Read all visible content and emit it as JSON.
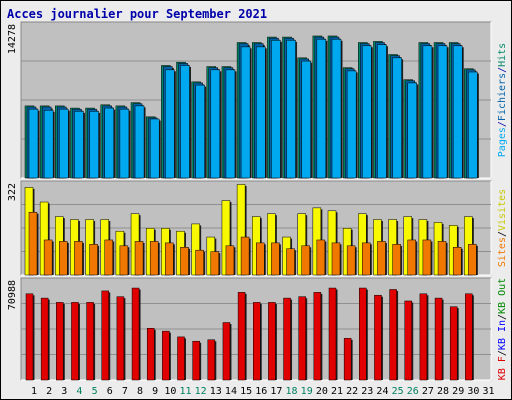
{
  "title": "Acces journalier pour September 2021",
  "colors": {
    "panel_bg": "#c0c0c0",
    "pages": "#00a8f0",
    "fichiers": "#0060a8",
    "hits": "#008868",
    "visites": "#f8f800",
    "sites": "#f07800",
    "kb_in": "#0000ff",
    "kb_out": "#008800",
    "kb_f": "#e00000",
    "weekend_label": "#008060"
  },
  "chart_data": [
    {
      "type": "bar",
      "name": "hits-fichiers-pages",
      "ymax_label": "14278",
      "ylim": [
        0,
        14278
      ],
      "side_labels": [
        "Pages",
        "/",
        "Fichiers",
        "/",
        "Hits"
      ],
      "categories": [
        "1",
        "2",
        "3",
        "4",
        "5",
        "6",
        "7",
        "8",
        "9",
        "10",
        "11",
        "12",
        "13",
        "14",
        "15",
        "16",
        "17",
        "18",
        "19",
        "20",
        "21",
        "22",
        "23",
        "24",
        "25",
        "26",
        "27",
        "28",
        "29",
        "30",
        "31"
      ],
      "series": [
        {
          "name": "Hits",
          "values": [
            6600,
            6600,
            6600,
            6400,
            6400,
            6700,
            6600,
            6900,
            5600,
            10300,
            10600,
            8800,
            10200,
            10200,
            12400,
            12400,
            12900,
            12900,
            11000,
            13000,
            13000,
            10100,
            12400,
            12500,
            11300,
            9000,
            12400,
            12400,
            12400,
            10000,
            0
          ]
        },
        {
          "name": "Fichiers",
          "values": [
            6500,
            6500,
            6500,
            6300,
            6300,
            6600,
            6500,
            6800,
            5500,
            10200,
            10500,
            8700,
            10100,
            10100,
            12300,
            12300,
            12800,
            12800,
            10900,
            12900,
            12900,
            10000,
            12300,
            12400,
            11200,
            8900,
            12300,
            12300,
            12300,
            9900,
            0
          ]
        },
        {
          "name": "Pages",
          "values": [
            6300,
            6200,
            6300,
            6100,
            6100,
            6400,
            6300,
            6600,
            5400,
            9900,
            10300,
            8500,
            9900,
            9900,
            12000,
            12000,
            12600,
            12600,
            10700,
            12700,
            12700,
            9800,
            12100,
            12200,
            11000,
            8700,
            12100,
            12100,
            12100,
            9700,
            0
          ]
        }
      ]
    },
    {
      "type": "bar",
      "name": "visites-sites",
      "ymax_label": "322",
      "ylim": [
        0,
        322
      ],
      "side_labels": [
        "Sites",
        "/",
        "Visites"
      ],
      "categories": [
        "1",
        "2",
        "3",
        "4",
        "5",
        "6",
        "7",
        "8",
        "9",
        "10",
        "11",
        "12",
        "13",
        "14",
        "15",
        "16",
        "17",
        "18",
        "19",
        "20",
        "21",
        "22",
        "23",
        "24",
        "25",
        "26",
        "27",
        "28",
        "29",
        "30",
        "31"
      ],
      "series": [
        {
          "name": "Visites",
          "values": [
            300,
            250,
            200,
            190,
            190,
            190,
            150,
            210,
            160,
            160,
            150,
            175,
            130,
            255,
            310,
            200,
            210,
            130,
            210,
            230,
            220,
            160,
            210,
            190,
            190,
            200,
            190,
            180,
            170,
            200,
            0
          ]
        },
        {
          "name": "Sites",
          "values": [
            215,
            120,
            115,
            115,
            105,
            120,
            100,
            115,
            115,
            110,
            95,
            85,
            80,
            100,
            130,
            110,
            110,
            90,
            100,
            120,
            110,
            100,
            110,
            115,
            105,
            120,
            120,
            115,
            95,
            105,
            0
          ]
        }
      ]
    },
    {
      "type": "bar",
      "name": "kb",
      "ymax_label": "70988",
      "ylim": [
        0,
        70988
      ],
      "side_labels": [
        "KB F",
        "/",
        "KB In",
        "/",
        "KB Out"
      ],
      "categories": [
        "1",
        "2",
        "3",
        "4",
        "5",
        "6",
        "7",
        "8",
        "9",
        "10",
        "11",
        "12",
        "13",
        "14",
        "15",
        "16",
        "17",
        "18",
        "19",
        "20",
        "21",
        "22",
        "23",
        "24",
        "25",
        "26",
        "27",
        "28",
        "29",
        "30",
        "31"
      ],
      "series": [
        {
          "name": "KB F",
          "values": [
            60000,
            57000,
            54000,
            54000,
            54000,
            62000,
            58000,
            64000,
            36000,
            34000,
            30000,
            27000,
            28000,
            40000,
            61000,
            54000,
            54000,
            57000,
            58000,
            61000,
            64000,
            29000,
            64000,
            59000,
            63000,
            55000,
            60000,
            57000,
            51000,
            60000,
            0
          ]
        }
      ]
    }
  ],
  "weekend_days": [
    4,
    5,
    11,
    12,
    18,
    19,
    25,
    26
  ]
}
